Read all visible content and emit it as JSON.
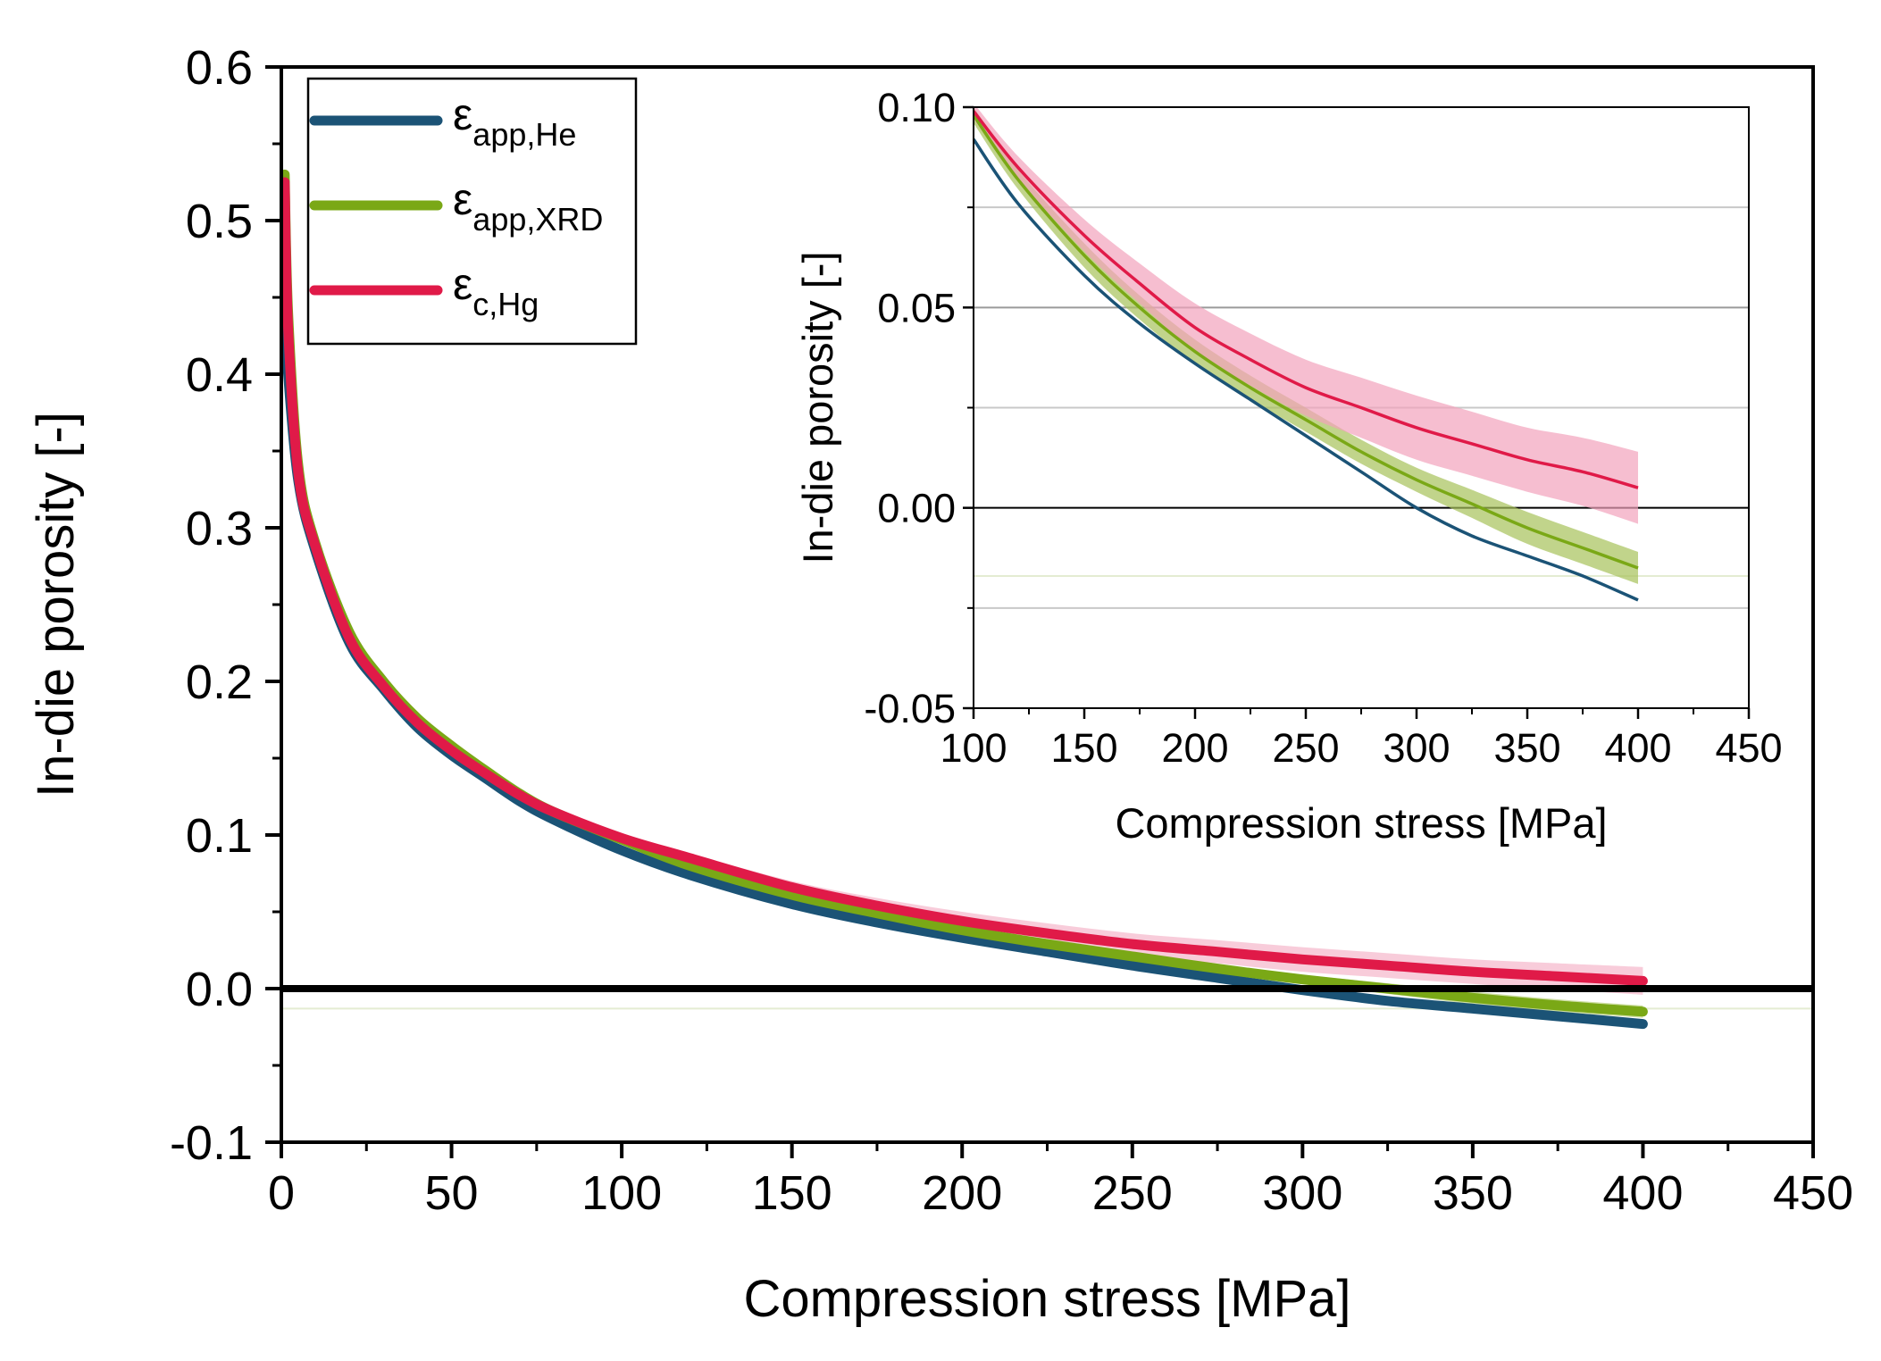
{
  "chart_data": [
    {
      "type": "line",
      "xlabel": "Compression stress [MPa]",
      "ylabel": "In-die porosity [-]",
      "xlim": [
        0,
        450
      ],
      "ylim": [
        -0.1,
        0.6
      ],
      "xticks": [
        "0",
        "50",
        "100",
        "150",
        "200",
        "250",
        "300",
        "350",
        "400",
        "450"
      ],
      "yticks": [
        "-0.1",
        "0.0",
        "0.1",
        "0.2",
        "0.3",
        "0.4",
        "0.5",
        "0.6"
      ],
      "zero_line": true,
      "legend_position": "top-left",
      "series": [
        {
          "name": "εapp,He",
          "symbol": "ε",
          "subscript": "app,He",
          "color": "#1b5376",
          "band": null,
          "points": [
            [
              1,
              0.45
            ],
            [
              2,
              0.4
            ],
            [
              5,
              0.33
            ],
            [
              10,
              0.285
            ],
            [
              20,
              0.225
            ],
            [
              30,
              0.195
            ],
            [
              40,
              0.17
            ],
            [
              50,
              0.152
            ],
            [
              60,
              0.137
            ],
            [
              70,
              0.122
            ],
            [
              80,
              0.11
            ],
            [
              100,
              0.09
            ],
            [
              120,
              0.074
            ],
            [
              150,
              0.055
            ],
            [
              175,
              0.043
            ],
            [
              200,
              0.033
            ],
            [
              225,
              0.024
            ],
            [
              250,
              0.015
            ],
            [
              275,
              0.007
            ],
            [
              300,
              -0.001
            ],
            [
              325,
              -0.008
            ],
            [
              350,
              -0.013
            ],
            [
              375,
              -0.018
            ],
            [
              400,
              -0.023
            ]
          ]
        },
        {
          "name": "εapp,XRD",
          "symbol": "ε",
          "subscript": "app,XRD",
          "color": "#7aa816",
          "band_color": "#a6c25a",
          "band": [
            [
              100,
              0.002
            ],
            [
              150,
              0.003
            ],
            [
              200,
              0.003
            ],
            [
              250,
              0.003
            ],
            [
              300,
              0.003
            ],
            [
              350,
              0.004
            ],
            [
              400,
              0.004
            ]
          ],
          "points": [
            [
              1,
              0.53
            ],
            [
              2,
              0.44
            ],
            [
              5,
              0.34
            ],
            [
              10,
              0.29
            ],
            [
              20,
              0.232
            ],
            [
              30,
              0.2
            ],
            [
              40,
              0.176
            ],
            [
              50,
              0.158
            ],
            [
              60,
              0.142
            ],
            [
              70,
              0.127
            ],
            [
              80,
              0.115
            ],
            [
              100,
              0.097
            ],
            [
              120,
              0.08
            ],
            [
              150,
              0.061
            ],
            [
              175,
              0.049
            ],
            [
              200,
              0.038
            ],
            [
              225,
              0.029
            ],
            [
              250,
              0.021
            ],
            [
              275,
              0.013
            ],
            [
              300,
              0.006
            ],
            [
              325,
              0.0
            ],
            [
              350,
              -0.006
            ],
            [
              375,
              -0.011
            ],
            [
              400,
              -0.015
            ]
          ]
        },
        {
          "name": "εc,Hg",
          "symbol": "ε",
          "subscript": "c,Hg",
          "color": "#e01a48",
          "band_color": "#f2a3bc",
          "band": [
            [
              100,
              0.002
            ],
            [
              150,
              0.004
            ],
            [
              200,
              0.006
            ],
            [
              250,
              0.007
            ],
            [
              300,
              0.008
            ],
            [
              350,
              0.008
            ],
            [
              400,
              0.009
            ]
          ],
          "points": [
            [
              1,
              0.525
            ],
            [
              2,
              0.43
            ],
            [
              5,
              0.335
            ],
            [
              10,
              0.288
            ],
            [
              20,
              0.228
            ],
            [
              30,
              0.197
            ],
            [
              40,
              0.173
            ],
            [
              50,
              0.155
            ],
            [
              60,
              0.14
            ],
            [
              70,
              0.126
            ],
            [
              80,
              0.115
            ],
            [
              100,
              0.098
            ],
            [
              120,
              0.085
            ],
            [
              150,
              0.066
            ],
            [
              175,
              0.054
            ],
            [
              200,
              0.044
            ],
            [
              225,
              0.036
            ],
            [
              250,
              0.029
            ],
            [
              275,
              0.024
            ],
            [
              300,
              0.019
            ],
            [
              325,
              0.015
            ],
            [
              350,
              0.011
            ],
            [
              375,
              0.008
            ],
            [
              400,
              0.005
            ]
          ]
        }
      ]
    },
    {
      "type": "line",
      "xlabel": "Compression stress [MPa]",
      "ylabel": "In-die porosity [-]",
      "xlim": [
        100,
        450
      ],
      "ylim": [
        -0.05,
        0.1
      ],
      "xticks": [
        "100",
        "150",
        "200",
        "250",
        "300",
        "350",
        "400",
        "450"
      ],
      "yticks": [
        "-0.05",
        "0.00",
        "0.05",
        "0.10"
      ],
      "grid": true,
      "zero_line": true,
      "series": [
        {
          "name": "εapp,He",
          "color": "#1b5376",
          "points": [
            [
              100,
              0.092
            ],
            [
              120,
              0.076
            ],
            [
              150,
              0.058
            ],
            [
              175,
              0.046
            ],
            [
              200,
              0.036
            ],
            [
              225,
              0.027
            ],
            [
              250,
              0.018
            ],
            [
              275,
              0.009
            ],
            [
              300,
              0.0
            ],
            [
              325,
              -0.007
            ],
            [
              350,
              -0.012
            ],
            [
              375,
              -0.017
            ],
            [
              400,
              -0.023
            ]
          ]
        },
        {
          "name": "εapp,XRD",
          "color": "#7aa816",
          "band_color": "#a6c25a",
          "band": [
            [
              100,
              0.002
            ],
            [
              150,
              0.003
            ],
            [
              200,
              0.003
            ],
            [
              250,
              0.003
            ],
            [
              300,
              0.003
            ],
            [
              350,
              0.004
            ],
            [
              400,
              0.004
            ]
          ],
          "points": [
            [
              100,
              0.098
            ],
            [
              120,
              0.082
            ],
            [
              150,
              0.063
            ],
            [
              175,
              0.05
            ],
            [
              200,
              0.039
            ],
            [
              225,
              0.03
            ],
            [
              250,
              0.022
            ],
            [
              275,
              0.014
            ],
            [
              300,
              0.007
            ],
            [
              325,
              0.001
            ],
            [
              350,
              -0.005
            ],
            [
              375,
              -0.01
            ],
            [
              400,
              -0.015
            ]
          ]
        },
        {
          "name": "εc,Hg",
          "color": "#e01a48",
          "band_color": "#f2a3bc",
          "band": [
            [
              100,
              0.002
            ],
            [
              150,
              0.004
            ],
            [
              200,
              0.006
            ],
            [
              250,
              0.007
            ],
            [
              300,
              0.008
            ],
            [
              350,
              0.008
            ],
            [
              400,
              0.009
            ]
          ],
          "points": [
            [
              100,
              0.099
            ],
            [
              120,
              0.085
            ],
            [
              150,
              0.068
            ],
            [
              175,
              0.056
            ],
            [
              200,
              0.045
            ],
            [
              225,
              0.037
            ],
            [
              250,
              0.03
            ],
            [
              275,
              0.025
            ],
            [
              300,
              0.02
            ],
            [
              325,
              0.016
            ],
            [
              350,
              0.012
            ],
            [
              375,
              0.009
            ],
            [
              400,
              0.005
            ]
          ]
        }
      ]
    }
  ]
}
